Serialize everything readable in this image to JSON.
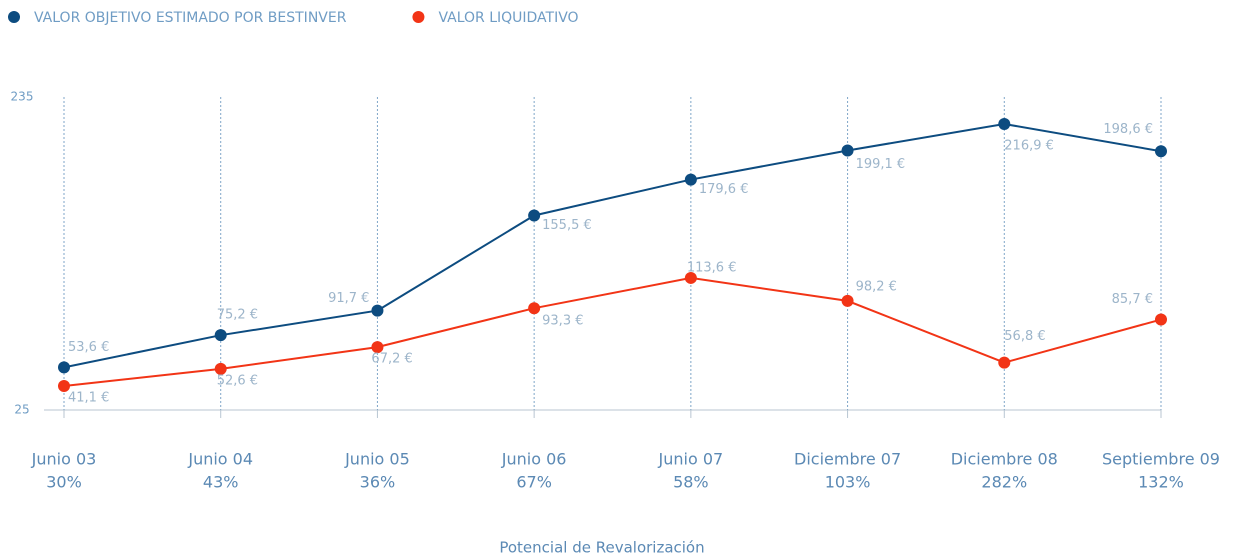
{
  "chart_data": {
    "type": "line",
    "x_label": "Potencial de Revalorización",
    "categories": [
      "Junio 03",
      "Junio 04",
      "Junio 05",
      "Junio 06",
      "Junio 07",
      "Diciembre 07",
      "Diciembre 08",
      "Septiembre 09"
    ],
    "potential_labels": [
      "30%",
      "43%",
      "36%",
      "67%",
      "58%",
      "103%",
      "282%",
      "132%"
    ],
    "series": [
      {
        "name": "VALOR OBJETIVO ESTIMADO POR BESTINVER",
        "color": "#0d4c80",
        "values": [
          53.6,
          75.2,
          91.7,
          155.5,
          179.6,
          199.1,
          216.9,
          198.6
        ],
        "value_labels": [
          "53,6 €",
          "75,2 €",
          "91,7 €",
          "155,5 €",
          "179,6 €",
          "199,1 €",
          "216,9 €",
          "198,6 €"
        ]
      },
      {
        "name": "VALOR LIQUIDATIVO",
        "color": "#f23416",
        "values": [
          41.1,
          52.6,
          67.2,
          93.3,
          113.6,
          98.2,
          56.8,
          85.7
        ],
        "value_labels": [
          "41,1 €",
          "52,6 €",
          "67,2 €",
          "93,3 €",
          "113,6 €",
          "98,2 €",
          "56,8 €",
          "85,7 €"
        ]
      }
    ],
    "ylim": [
      25,
      235
    ],
    "yticks": [
      25,
      235
    ]
  }
}
